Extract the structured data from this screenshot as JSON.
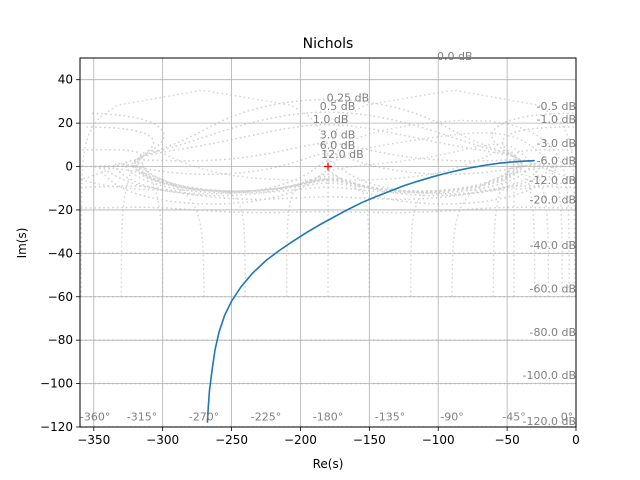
{
  "chart_data": {
    "type": "line",
    "title": "Nichols",
    "xlabel": "Re(s)",
    "ylabel": "Im(s)",
    "xlim": [
      -360,
      0
    ],
    "ylim": [
      -120,
      50
    ],
    "xticks": [
      -350,
      -300,
      -250,
      -200,
      -150,
      -100,
      -50,
      0
    ],
    "yticks": [
      -120,
      -100,
      -80,
      -60,
      -40,
      -20,
      0,
      20,
      40
    ],
    "grid": true,
    "grid_color": "#b0b0b0",
    "series_color": "#1f77b4",
    "critical_point": {
      "x": -180,
      "y": 0,
      "color": "#ff0000",
      "marker": "+"
    },
    "series": [
      {
        "x": [
          -267.5,
          -267,
          -266,
          -264,
          -262,
          -259,
          -255,
          -250,
          -243,
          -235,
          -225,
          -215,
          -205,
          -195,
          -185,
          -175,
          -165,
          -155,
          -145,
          -135,
          -125,
          -115,
          -105,
          -95,
          -85,
          -75,
          -65,
          -55,
          -45,
          -35,
          -30
        ],
        "y": [
          -118,
          -112,
          -103,
          -93,
          -84.5,
          -76,
          -68.5,
          -62,
          -55.3,
          -49.3,
          -43.3,
          -38.5,
          -34.2,
          -30.2,
          -26.5,
          -23,
          -19.6,
          -16.5,
          -13.8,
          -11.3,
          -8.9,
          -6.8,
          -4.9,
          -3.2,
          -1.7,
          -0.4,
          0.7,
          1.6,
          2.2,
          2.6,
          2.7
        ]
      }
    ],
    "closed_loop_mag_labels": [
      "0.0 dB",
      "0.25 dB",
      "0.5 dB",
      "1.0 dB",
      "3.0 dB",
      "6.0 dB",
      "12.0 dB",
      "-0.5 dB",
      "-1.0 dB",
      "-3.0 dB",
      "-6.0 dB",
      "-12.0 dB",
      "-20.0 dB",
      "-40.0 dB",
      "-60.0 dB",
      "-80.0 dB",
      "-100.0 dB",
      "-120.0 dB"
    ],
    "closed_loop_phase_labels": [
      "-360°",
      "-315°",
      "-270°",
      "-225°",
      "-180°",
      "-135°",
      "-90°",
      "-45°",
      "0°"
    ]
  }
}
